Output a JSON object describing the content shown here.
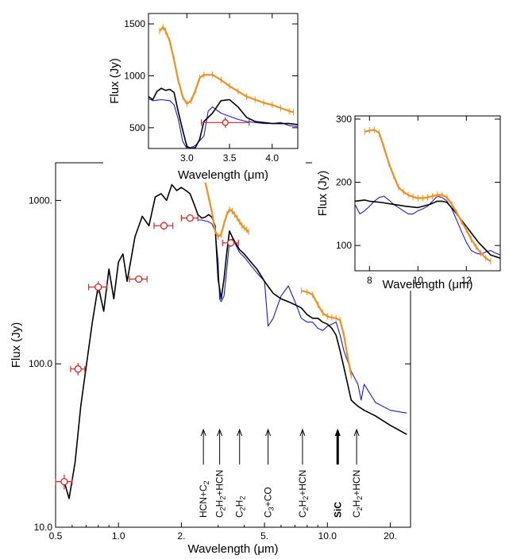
{
  "chart_data": [
    {
      "type": "line",
      "panel": "main",
      "xlabel": "Wavelength (μm)",
      "ylabel": "Flux (Jy)",
      "x_scale": "log",
      "y_scale": "log",
      "xlim": [
        0.5,
        25
      ],
      "ylim": [
        10,
        1700
      ],
      "x_ticks": [
        0.5,
        1.0,
        2.0,
        5.0,
        10.0,
        20.0
      ],
      "x_tick_labels": [
        "0.5",
        "1.0",
        "2.",
        "5.",
        "10.0",
        "20."
      ],
      "y_ticks": [
        10,
        100,
        1000
      ],
      "y_tick_labels": [
        "10.0",
        "100.0",
        "1000."
      ],
      "colors": {
        "model": "#000000",
        "iso": "#1a1adc",
        "obs": "#f0901e",
        "photometry": "#dd2222"
      },
      "series": [
        {
          "role": "model",
          "x": [
            0.55,
            0.58,
            0.62,
            0.66,
            0.7,
            0.75,
            0.8,
            0.85,
            0.9,
            0.95,
            1.0,
            1.05,
            1.1,
            1.2,
            1.3,
            1.4,
            1.5,
            1.6,
            1.7,
            1.8,
            1.9,
            2.0,
            2.1,
            2.2,
            2.3,
            2.4,
            2.5,
            2.6,
            2.7,
            2.8,
            2.9,
            3.0,
            3.1,
            3.2,
            3.3,
            3.4,
            3.5,
            3.6,
            3.8,
            4.0,
            4.3,
            4.6,
            5.0,
            5.5,
            6.0,
            6.5,
            7.0,
            7.5,
            8.0,
            8.5,
            9.0,
            9.5,
            10.0,
            10.5,
            11.0,
            11.5,
            12.0,
            13.0,
            14.0,
            15.0,
            17.0,
            20.0,
            24.0
          ],
          "values": [
            19,
            15,
            25,
            55,
            95,
            180,
            300,
            210,
            380,
            250,
            420,
            470,
            320,
            600,
            800,
            700,
            1050,
            1100,
            1000,
            1250,
            1150,
            1200,
            1150,
            1100,
            950,
            820,
            780,
            790,
            820,
            790,
            700,
            330,
            250,
            330,
            480,
            650,
            600,
            560,
            500,
            470,
            420,
            380,
            320,
            270,
            250,
            240,
            230,
            220,
            200,
            190,
            190,
            180,
            175,
            165,
            150,
            120,
            95,
            60,
            55,
            52,
            48,
            42,
            37
          ]
        },
        {
          "role": "iso",
          "x": [
            2.4,
            2.5,
            2.6,
            2.7,
            2.8,
            2.9,
            3.0,
            3.05,
            3.1,
            3.2,
            3.3,
            3.4,
            3.5,
            3.6,
            3.8,
            4.0,
            4.3,
            4.6,
            5.0,
            5.2,
            5.5,
            6.0,
            6.5,
            7.0,
            7.5,
            8.0,
            8.5,
            9.0,
            9.5,
            10.0,
            10.5,
            11.0,
            11.5,
            12.0,
            13.0,
            14.0,
            14.5,
            15.0,
            17.0,
            20.0,
            24.0
          ],
          "values": [
            760,
            760,
            750,
            740,
            720,
            650,
            420,
            250,
            240,
            260,
            380,
            560,
            580,
            550,
            480,
            450,
            400,
            360,
            320,
            170,
            190,
            260,
            300,
            240,
            190,
            180,
            180,
            165,
            160,
            170,
            175,
            180,
            150,
            120,
            90,
            75,
            60,
            75,
            58,
            52,
            50
          ]
        },
        {
          "role": "obs",
          "x": [
            2.5,
            2.6,
            2.7,
            2.8,
            2.9,
            3.0,
            3.1,
            3.2,
            3.3,
            3.4,
            3.5,
            3.6,
            3.7,
            3.8,
            3.9,
            4.0,
            4.1,
            4.2
          ],
          "values": [
            1400,
            1300,
            1050,
            850,
            650,
            600,
            620,
            720,
            820,
            880,
            860,
            820,
            780,
            740,
            700,
            680,
            660,
            640
          ]
        },
        {
          "role": "obs",
          "x": [
            7.5,
            8.0,
            8.5,
            9.0,
            9.5,
            10.0,
            10.5,
            11.0,
            11.5,
            12.0,
            12.5,
            13.0
          ],
          "values": [
            280,
            275,
            265,
            230,
            205,
            195,
            192,
            190,
            185,
            150,
            110,
            85
          ]
        }
      ],
      "photometry": [
        {
          "x": 0.55,
          "y": 19,
          "xerr": [
            0.05,
            0.05
          ],
          "yerr": [
            2,
            2
          ]
        },
        {
          "x": 0.64,
          "y": 93,
          "xerr": [
            0.05,
            0.05
          ],
          "yerr": [
            8,
            8
          ]
        },
        {
          "x": 0.8,
          "y": 295,
          "xerr": [
            0.08,
            0.08
          ],
          "yerr": [
            25,
            25
          ]
        },
        {
          "x": 1.25,
          "y": 330,
          "xerr": [
            0.12,
            0.12
          ],
          "yerr": [
            15,
            15
          ]
        },
        {
          "x": 1.65,
          "y": 700,
          "xerr": [
            0.17,
            0.17
          ],
          "yerr": [
            40,
            40
          ]
        },
        {
          "x": 2.2,
          "y": 780,
          "xerr": [
            0.2,
            0.2
          ],
          "yerr": [
            30,
            30
          ]
        },
        {
          "x": 3.45,
          "y": 550,
          "xerr": [
            0.3,
            0.3
          ],
          "yerr": [
            30,
            30
          ]
        }
      ],
      "annotations": [
        {
          "x": 2.55,
          "lines": [
            "HCN+C",
            "2"
          ],
          "bold": false
        },
        {
          "x": 3.05,
          "lines": [
            "C",
            "2",
            "H",
            "2",
            "+HCN"
          ],
          "bold": false
        },
        {
          "x": 3.8,
          "lines": [
            "C",
            "2",
            "H",
            "2"
          ],
          "bold": false
        },
        {
          "x": 5.2,
          "lines": [
            "C",
            "3",
            "+CO"
          ],
          "bold": false
        },
        {
          "x": 7.6,
          "lines": [
            "C",
            "2",
            "H",
            "2",
            "+HCN"
          ],
          "bold": false
        },
        {
          "x": 11.2,
          "lines": [
            "SiC"
          ],
          "bold": true
        },
        {
          "x": 13.8,
          "lines": [
            "C",
            "2",
            "H",
            "2",
            "+HCN"
          ],
          "bold": false
        }
      ]
    },
    {
      "type": "line",
      "panel": "inset-top",
      "xlabel": "Wavelength (μm)",
      "ylabel": "Flux (Jy)",
      "xlim": [
        2.55,
        4.3
      ],
      "ylim": [
        300,
        1600
      ],
      "x_ticks": [
        3.0,
        3.5,
        4.0
      ],
      "x_tick_labels": [
        "3.0",
        "3.5",
        "4.0"
      ],
      "y_ticks": [
        500,
        1000,
        1500
      ],
      "y_tick_labels": [
        "500",
        "1000",
        "1500"
      ],
      "series": [
        {
          "role": "obs",
          "x": [
            2.68,
            2.72,
            2.75,
            2.8,
            2.85,
            2.9,
            2.95,
            3.0,
            3.05,
            3.1,
            3.15,
            3.2,
            3.3,
            3.4,
            3.5,
            3.6,
            3.7,
            3.8,
            3.9,
            4.0,
            4.1,
            4.2,
            4.25
          ],
          "values": [
            1430,
            1470,
            1430,
            1330,
            1150,
            950,
            800,
            730,
            760,
            860,
            980,
            1010,
            1010,
            960,
            900,
            850,
            800,
            770,
            740,
            720,
            690,
            660,
            650
          ]
        },
        {
          "role": "model",
          "x": [
            2.55,
            2.6,
            2.65,
            2.7,
            2.75,
            2.8,
            2.85,
            2.9,
            2.95,
            3.0,
            3.05,
            3.1,
            3.15,
            3.2,
            3.3,
            3.4,
            3.5,
            3.6,
            3.7,
            3.8,
            3.9,
            4.0,
            4.1,
            4.2,
            4.3
          ],
          "values": [
            800,
            770,
            850,
            880,
            860,
            870,
            840,
            650,
            480,
            320,
            300,
            310,
            390,
            560,
            640,
            760,
            770,
            700,
            600,
            560,
            550,
            540,
            540,
            540,
            530
          ]
        },
        {
          "role": "iso",
          "x": [
            2.55,
            2.6,
            2.7,
            2.8,
            2.85,
            2.9,
            2.95,
            3.0,
            3.05,
            3.1,
            3.2,
            3.25,
            3.3,
            3.4,
            3.5,
            3.6,
            3.7,
            3.8,
            3.9,
            4.0,
            4.1,
            4.2,
            4.3
          ],
          "values": [
            780,
            760,
            770,
            760,
            720,
            580,
            370,
            300,
            310,
            330,
            420,
            660,
            700,
            640,
            610,
            580,
            560,
            550,
            540,
            540,
            550,
            520,
            510
          ]
        }
      ],
      "photometry": [
        {
          "x": 3.45,
          "y": 550,
          "xerr": [
            0.28,
            0.28
          ],
          "yerr": [
            50,
            50
          ]
        }
      ]
    },
    {
      "type": "line",
      "panel": "inset-right",
      "xlabel": "Wavelength (μm)",
      "ylabel": "Flux (Jy)",
      "xlim": [
        7.4,
        13.4
      ],
      "ylim": [
        60,
        305
      ],
      "x_ticks": [
        8,
        10,
        12
      ],
      "x_tick_labels": [
        "8",
        "10",
        "12"
      ],
      "y_ticks": [
        100,
        200,
        300
      ],
      "y_tick_labels": [
        "100",
        "200",
        "300"
      ],
      "series": [
        {
          "role": "obs",
          "x": [
            7.8,
            8.0,
            8.2,
            8.4,
            8.6,
            8.8,
            9.0,
            9.2,
            9.4,
            9.6,
            9.8,
            10.0,
            10.2,
            10.4,
            10.6,
            10.8,
            11.0,
            11.2,
            11.4,
            11.6,
            11.8,
            12.0,
            12.2,
            12.4,
            12.6,
            12.8,
            13.0
          ],
          "values": [
            280,
            282,
            283,
            278,
            255,
            230,
            210,
            192,
            185,
            180,
            177,
            175,
            175,
            176,
            178,
            180,
            180,
            176,
            165,
            152,
            138,
            125,
            110,
            98,
            88,
            80,
            75
          ]
        },
        {
          "role": "model",
          "x": [
            7.4,
            7.8,
            8.0,
            8.5,
            9.0,
            9.5,
            10.0,
            10.5,
            10.8,
            11.0,
            11.2,
            11.5,
            12.0,
            12.5,
            13.0,
            13.4
          ],
          "values": [
            170,
            172,
            170,
            168,
            165,
            162,
            160,
            165,
            170,
            170,
            168,
            155,
            130,
            105,
            85,
            80
          ]
        },
        {
          "role": "iso",
          "x": [
            7.4,
            7.6,
            7.8,
            8.0,
            8.2,
            8.4,
            8.6,
            8.8,
            9.0,
            9.2,
            9.4,
            9.6,
            9.8,
            10.0,
            10.2,
            10.4,
            10.6,
            10.8,
            11.0,
            11.2,
            11.4,
            11.6,
            11.8,
            12.0,
            12.2,
            12.4,
            12.6,
            12.8,
            13.0,
            13.2,
            13.4
          ],
          "values": [
            165,
            150,
            155,
            162,
            170,
            176,
            178,
            172,
            165,
            160,
            155,
            150,
            150,
            155,
            158,
            162,
            170,
            178,
            176,
            170,
            158,
            140,
            122,
            105,
            92,
            88,
            86,
            90,
            92,
            88,
            85
          ]
        }
      ]
    }
  ]
}
